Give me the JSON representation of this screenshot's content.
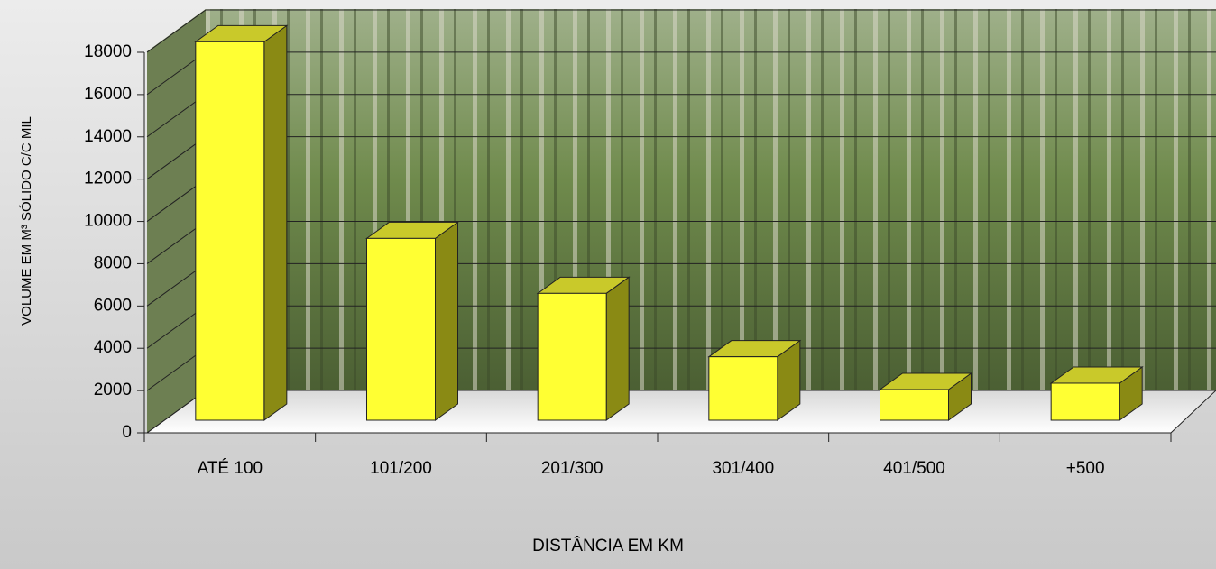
{
  "chart_data": {
    "type": "bar3d",
    "categories": [
      "ATÉ 100",
      "101/200",
      "201/300",
      "301/400",
      "401/500",
      "+500"
    ],
    "values": [
      17900,
      8600,
      6000,
      3000,
      1450,
      1750
    ],
    "color": "#ffff33",
    "ylim": [
      0,
      18000
    ],
    "yticks": [
      0,
      2000,
      4000,
      6000,
      8000,
      10000,
      12000,
      14000,
      16000,
      18000
    ],
    "grid": true,
    "xlabel": "DISTÂNCIA EM KM",
    "ylabel": "VOLUME EM M³ SÓLIDO C/C MIL"
  }
}
